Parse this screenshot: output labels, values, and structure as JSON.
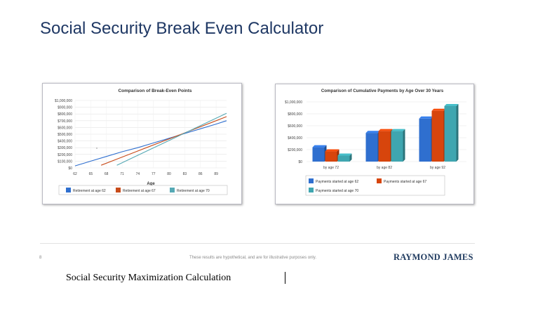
{
  "page": {
    "title": "Social Security Break Even Calculator",
    "page_number": "8",
    "disclaimer": "These results are hypothetical, and are for illustrative purposes only.",
    "brand": "RAYMOND JAMES",
    "caption": "Social Security Maximization Calculation"
  },
  "chart_data": [
    {
      "type": "line",
      "title": "Comparison of Break-Even Points",
      "xlabel": "Age",
      "ylabel": "",
      "x_ticks": [
        "62",
        "65",
        "68",
        "71",
        "74",
        "77",
        "80",
        "83",
        "86",
        "89"
      ],
      "xlim": [
        62,
        91
      ],
      "y_ticks": [
        "$0",
        "$100,000",
        "$200,000",
        "$300,000",
        "$400,000",
        "$500,000",
        "$600,000",
        "$700,000",
        "$800,000",
        "$900,000",
        "$1,000,000"
      ],
      "ylim": [
        0,
        1000000
      ],
      "grid": true,
      "legend": "bottom",
      "series": [
        {
          "name": "Retirement at age 62",
          "color": "#2f6fcf",
          "x": [
            62,
            65,
            68,
            71,
            74,
            77,
            80,
            83,
            86,
            89,
            91
          ],
          "y": [
            30000,
            100000,
            170000,
            240000,
            300000,
            370000,
            440000,
            510000,
            580000,
            650000,
            700000
          ]
        },
        {
          "name": "Retirement at age 67",
          "color": "#c84b1a",
          "x": [
            67,
            70,
            73,
            76,
            79,
            82,
            85,
            88,
            91
          ],
          "y": [
            40000,
            130000,
            220000,
            310000,
            400000,
            490000,
            580000,
            670000,
            760000
          ]
        },
        {
          "name": "Retirement at age 70",
          "color": "#56a9b5",
          "x": [
            70,
            73,
            76,
            79,
            82,
            85,
            88,
            91
          ],
          "y": [
            40000,
            150000,
            260000,
            370000,
            480000,
            590000,
            700000,
            810000
          ]
        }
      ]
    },
    {
      "type": "bar",
      "title": "Comparison of Cumulative Payments by Age Over 30 Years",
      "xlabel": "",
      "ylabel": "",
      "categories": [
        "by age 72",
        "by age 82",
        "by age 92"
      ],
      "y_ticks": [
        "$0",
        "$200,000",
        "$400,000",
        "$600,000",
        "$800,000",
        "$1,000,000"
      ],
      "ylim": [
        0,
        1000000
      ],
      "grid": true,
      "legend": "bottom",
      "series": [
        {
          "name": "Payments started at age 62",
          "color": "#2f6fcf",
          "values": [
            240000,
            480000,
            720000
          ]
        },
        {
          "name": "Payments started at age 67",
          "color": "#d7450c",
          "values": [
            170000,
            510000,
            850000
          ]
        },
        {
          "name": "Payments started at age 70",
          "color": "#3fa6b0",
          "values": [
            100000,
            510000,
            930000
          ]
        }
      ]
    }
  ]
}
